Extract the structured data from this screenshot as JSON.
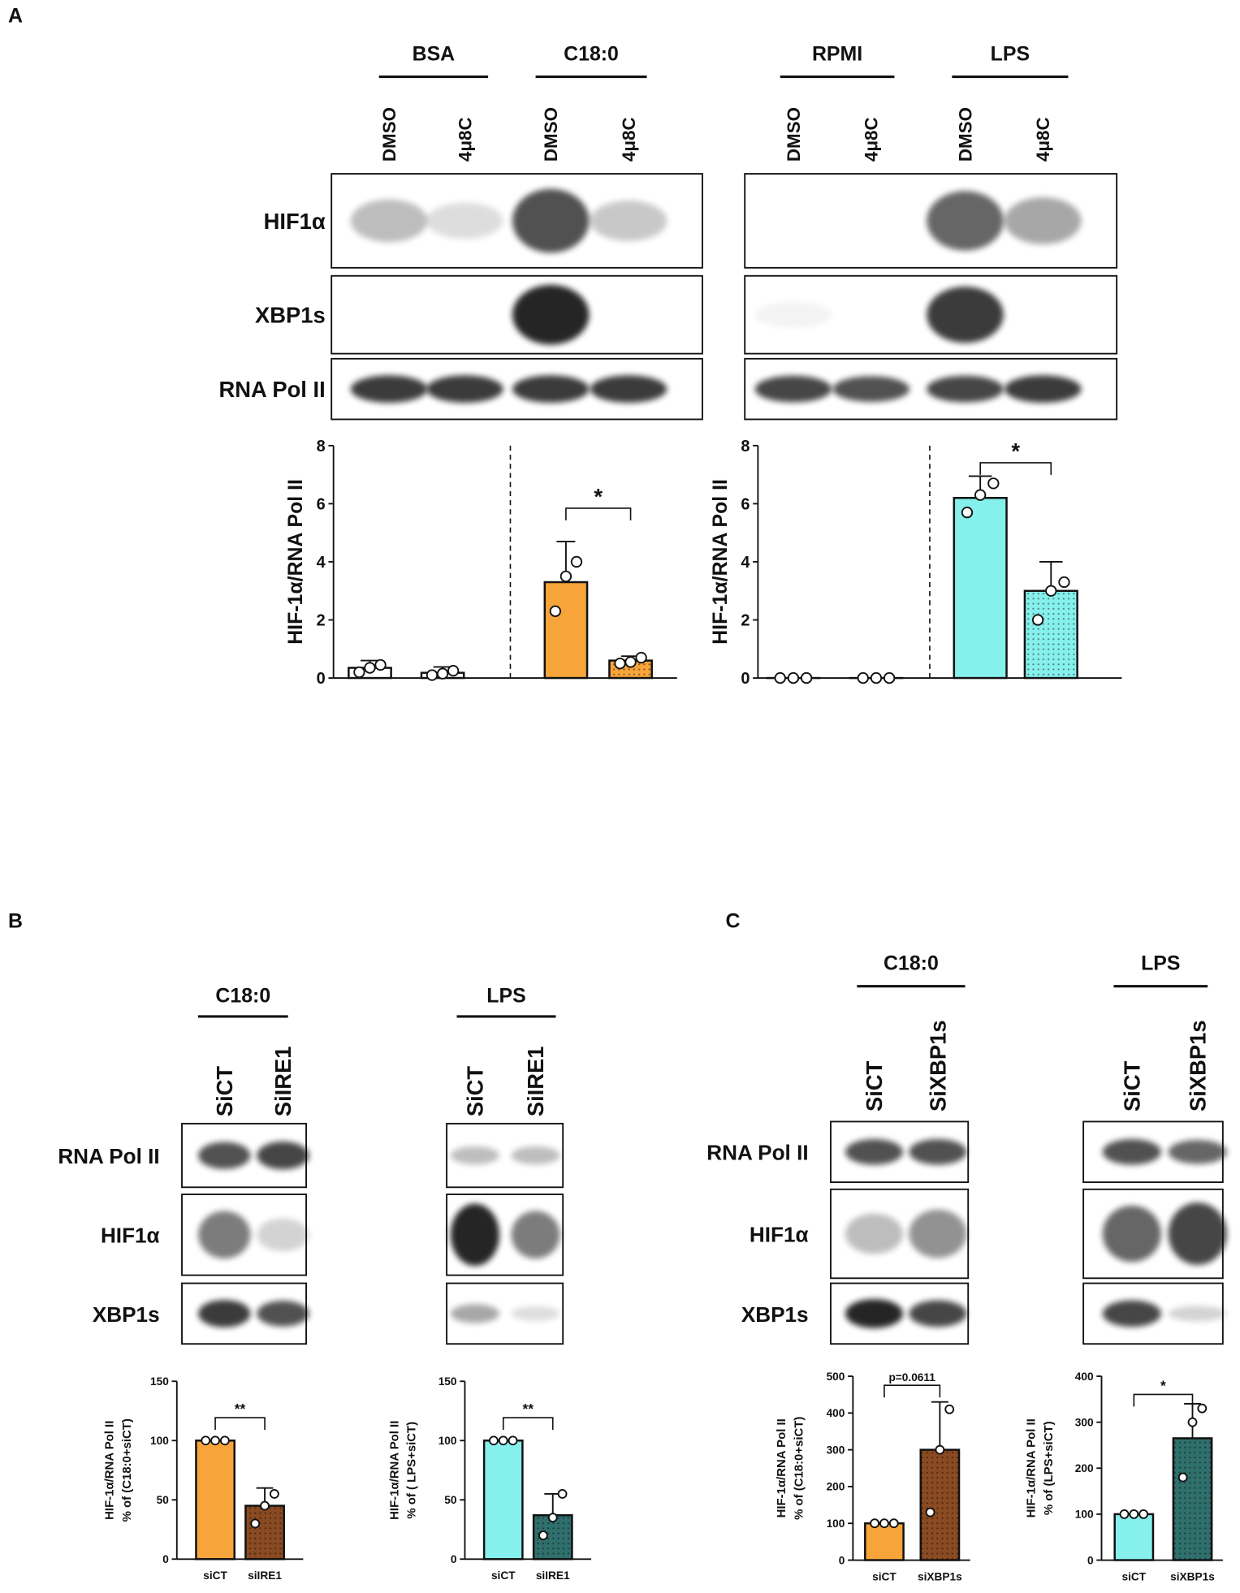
{
  "panels": [
    {
      "label": "A",
      "row_labels": [
        "HIF1α",
        "XBP1s",
        "RNA Pol II"
      ],
      "blots": [
        {
          "groups": [
            {
              "name": "BSA",
              "lanes": [
                "DMSO",
                "4μ8C"
              ]
            },
            {
              "name": "C18:0",
              "lanes": [
                "DMSO",
                "4μ8C"
              ]
            }
          ]
        },
        {
          "groups": [
            {
              "name": "RPMI",
              "lanes": [
                "DMSO",
                "4μ8C"
              ]
            },
            {
              "name": "LPS",
              "lanes": [
                "DMSO",
                "4μ8C"
              ]
            }
          ]
        }
      ]
    },
    {
      "label": "B",
      "row_labels": [
        "RNA Pol II",
        "HIF1α",
        "XBP1s"
      ],
      "blots": [
        {
          "groups": [
            {
              "name": "C18:0",
              "lanes": [
                "SiCT",
                "SiIRE1"
              ]
            }
          ]
        },
        {
          "groups": [
            {
              "name": "LPS",
              "lanes": [
                "SiCT",
                "SiIRE1"
              ]
            }
          ]
        }
      ]
    },
    {
      "label": "C",
      "row_labels": [
        "RNA Pol II",
        "HIF1α",
        "XBP1s"
      ],
      "blots": [
        {
          "groups": [
            {
              "name": "C18:0",
              "lanes": [
                "SiCT",
                "SiXBP1s"
              ]
            }
          ]
        },
        {
          "groups": [
            {
              "name": "LPS",
              "lanes": [
                "SiCT",
                "SiXBP1s"
              ]
            }
          ]
        }
      ]
    }
  ],
  "chart_data": [
    {
      "type": "bar",
      "ylabel": [
        "HIF-1α/RNA Pol II"
      ],
      "categories": [
        null,
        null,
        null,
        null
      ],
      "values": [
        0.35,
        0.18,
        3.3,
        0.6
      ],
      "errors": [
        0.25,
        0.2,
        1.4,
        0.15
      ],
      "points": [
        [
          0.2,
          0.35,
          0.45
        ],
        [
          0.1,
          0.15,
          0.25
        ],
        [
          2.3,
          3.5,
          4.0
        ],
        [
          0.5,
          0.55,
          0.7
        ]
      ],
      "colors": [
        "#ffffff",
        "#ffffff",
        "#f7a43a",
        "#f7a43a"
      ],
      "dotted": [
        false,
        false,
        false,
        true
      ],
      "ylim": [
        0,
        8
      ],
      "yticks": [
        0,
        2,
        4,
        6,
        8
      ],
      "annotation": "*"
    },
    {
      "type": "bar",
      "ylabel": [
        "HIF-1α/RNA Pol II"
      ],
      "categories": [
        null,
        null,
        null,
        null
      ],
      "values": [
        0,
        0,
        6.2,
        3.0
      ],
      "errors": [
        0,
        0,
        0.75,
        1.0
      ],
      "points": [
        [
          0,
          0,
          0
        ],
        [
          0,
          0,
          0
        ],
        [
          5.7,
          6.3,
          6.7
        ],
        [
          2.0,
          3.0,
          3.3
        ]
      ],
      "colors": [
        "#ffffff",
        "#ffffff",
        "#86f0ec",
        "#86f0ec"
      ],
      "dotted": [
        false,
        false,
        false,
        true
      ],
      "ylim": [
        0,
        8
      ],
      "yticks": [
        0,
        2,
        4,
        6,
        8
      ],
      "annotation": "*"
    },
    {
      "type": "bar",
      "ylabel": [
        "HIF-1α/RNA Pol II",
        "% of (C18:0+siCT)"
      ],
      "categories": [
        "siCT",
        "siIRE1"
      ],
      "values": [
        100,
        45
      ],
      "errors": [
        0,
        15
      ],
      "points": [
        [
          100,
          100,
          100
        ],
        [
          30,
          45,
          55
        ]
      ],
      "colors": [
        "#f7a43a",
        "#8a4a22"
      ],
      "dotted": [
        false,
        true
      ],
      "ylim": [
        0,
        150
      ],
      "yticks": [
        0,
        50,
        100,
        150
      ],
      "annotation": "**"
    },
    {
      "type": "bar",
      "ylabel": [
        "HIF-1α/RNA Pol II",
        "% of ( LPS+siCT)"
      ],
      "categories": [
        "siCT",
        "siIRE1"
      ],
      "values": [
        100,
        37
      ],
      "errors": [
        0,
        18
      ],
      "points": [
        [
          100,
          100,
          100
        ],
        [
          20,
          35,
          55
        ]
      ],
      "colors": [
        "#86f0ec",
        "#2f6f6c"
      ],
      "dotted": [
        false,
        true
      ],
      "ylim": [
        0,
        150
      ],
      "yticks": [
        0,
        50,
        100,
        150
      ],
      "annotation": "**"
    },
    {
      "type": "bar",
      "ylabel": [
        "HIF-1α/RNA Pol II",
        "% of (C18:0+siCT)"
      ],
      "categories": [
        "siCT",
        "siXBP1s"
      ],
      "values": [
        100,
        300
      ],
      "errors": [
        0,
        130
      ],
      "points": [
        [
          100,
          100,
          100
        ],
        [
          130,
          300,
          410
        ]
      ],
      "colors": [
        "#f7a43a",
        "#8a4a22"
      ],
      "dotted": [
        false,
        true
      ],
      "ylim": [
        0,
        500
      ],
      "yticks": [
        0,
        100,
        200,
        300,
        400,
        500
      ],
      "annotation": "p=0.0611"
    },
    {
      "type": "bar",
      "ylabel": [
        "HIF-1α/RNA Pol II",
        "% of (LPS+siCT)"
      ],
      "categories": [
        "siCT",
        "siXBP1s"
      ],
      "values": [
        100,
        265
      ],
      "errors": [
        0,
        75
      ],
      "points": [
        [
          100,
          100,
          100
        ],
        [
          180,
          300,
          330
        ]
      ],
      "colors": [
        "#86f0ec",
        "#2f6f6c"
      ],
      "dotted": [
        false,
        true
      ],
      "ylim": [
        0,
        400
      ],
      "yticks": [
        0,
        100,
        200,
        300,
        400
      ],
      "annotation": "*"
    }
  ]
}
